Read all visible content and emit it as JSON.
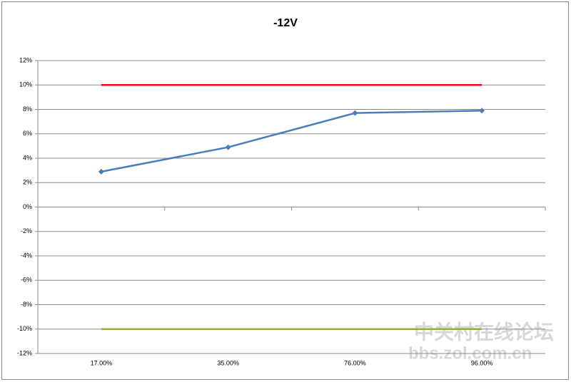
{
  "chart_data": {
    "type": "line",
    "title": "-12V",
    "categories": [
      "17.00%",
      "35.00%",
      "76.00%",
      "96.00%"
    ],
    "series": [
      {
        "color": "#4a7ebb",
        "marker": "diamond",
        "values": [
          2.9,
          4.9,
          7.7,
          7.9
        ]
      },
      {
        "color": "#ff0000",
        "marker": "none",
        "values": [
          10,
          10,
          10,
          10
        ]
      },
      {
        "color": "#8db33a",
        "marker": "none",
        "values": [
          -10,
          -10,
          -10,
          -10
        ]
      }
    ],
    "ylim": [
      -12,
      12
    ],
    "yticks": [
      {
        "value": -12,
        "label": "-12%"
      },
      {
        "value": -10,
        "label": "-10%"
      },
      {
        "value": -8,
        "label": "-8%"
      },
      {
        "value": -6,
        "label": "-6%"
      },
      {
        "value": -4,
        "label": "-4%"
      },
      {
        "value": -2,
        "label": "-2%"
      },
      {
        "value": 0,
        "label": "0%"
      },
      {
        "value": 2,
        "label": "2%"
      },
      {
        "value": 4,
        "label": "4%"
      },
      {
        "value": 6,
        "label": "6%"
      },
      {
        "value": 8,
        "label": "8%"
      },
      {
        "value": 10,
        "label": "10%"
      },
      {
        "value": 12,
        "label": "12%"
      }
    ],
    "grid": true,
    "watermark": [
      "中关村在线论坛",
      "bbs.zol.com.cn"
    ]
  }
}
